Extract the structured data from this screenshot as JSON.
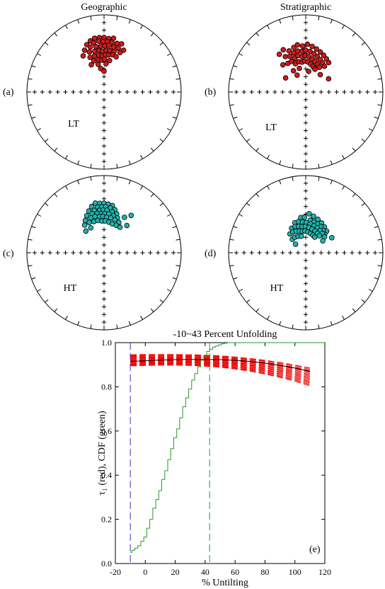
{
  "figure": {
    "col_titles": [
      "Geographic",
      "Stratigraphic"
    ],
    "panel_tags": [
      "(a)",
      "(b)",
      "(c)",
      "(d)",
      "(e)"
    ],
    "component_labels": [
      "LT",
      "LT",
      "HT",
      "HT"
    ]
  },
  "colors": {
    "lt_points": "#cc1a1a",
    "ht_points": "#20b2aa",
    "tau1_curves": "#ee0000",
    "cdf": "#2a9a2a",
    "mean_curve": "#000000",
    "lower_bound_line": "#3333cc",
    "upper_bound_line": "#2a9a2a"
  },
  "chart_data": [
    {
      "type": "scatter",
      "projection": "equal-area stereonet",
      "panel": "(a)",
      "title": "Geographic",
      "component": "LT",
      "points": [
        [
          345,
          32
        ],
        [
          350,
          30
        ],
        [
          355,
          30
        ],
        [
          0,
          30
        ],
        [
          5,
          31
        ],
        [
          10,
          30
        ],
        [
          340,
          35
        ],
        [
          348,
          35
        ],
        [
          354,
          34
        ],
        [
          359,
          35
        ],
        [
          4,
          35
        ],
        [
          9,
          35
        ],
        [
          15,
          35
        ],
        [
          20,
          34
        ],
        [
          335,
          40
        ],
        [
          343,
          39
        ],
        [
          350,
          40
        ],
        [
          356,
          40
        ],
        [
          1,
          40
        ],
        [
          6,
          39
        ],
        [
          12,
          40
        ],
        [
          18,
          40
        ],
        [
          25,
          40
        ],
        [
          330,
          45
        ],
        [
          340,
          44
        ],
        [
          347,
          45
        ],
        [
          353,
          45
        ],
        [
          358,
          46
        ],
        [
          3,
          45
        ],
        [
          8,
          45
        ],
        [
          14,
          45
        ],
        [
          22,
          44
        ],
        [
          338,
          50
        ],
        [
          345,
          50
        ],
        [
          352,
          50
        ],
        [
          357,
          51
        ],
        [
          2,
          50
        ],
        [
          7,
          50
        ],
        [
          13,
          49
        ],
        [
          19,
          50
        ],
        [
          342,
          55
        ],
        [
          350,
          55
        ],
        [
          356,
          56
        ],
        [
          1,
          55
        ],
        [
          10,
          56
        ],
        [
          335,
          58
        ],
        [
          348,
          60
        ],
        [
          4,
          60
        ],
        [
          352,
          65
        ],
        [
          0,
          68
        ]
      ]
    },
    {
      "type": "scatter",
      "projection": "equal-area stereonet",
      "panel": "(b)",
      "title": "Stratigraphic",
      "component": "LT",
      "points": [
        [
          325,
          40
        ],
        [
          332,
          38
        ],
        [
          338,
          42
        ],
        [
          345,
          40
        ],
        [
          350,
          38
        ],
        [
          356,
          40
        ],
        [
          2,
          38
        ],
        [
          8,
          40
        ],
        [
          14,
          42
        ],
        [
          20,
          44
        ],
        [
          26,
          46
        ],
        [
          32,
          48
        ],
        [
          38,
          50
        ],
        [
          330,
          46
        ],
        [
          336,
          48
        ],
        [
          343,
          46
        ],
        [
          349,
          45
        ],
        [
          355,
          46
        ],
        [
          0,
          45
        ],
        [
          6,
          46
        ],
        [
          12,
          48
        ],
        [
          18,
          50
        ],
        [
          24,
          52
        ],
        [
          30,
          54
        ],
        [
          36,
          56
        ],
        [
          320,
          52
        ],
        [
          328,
          54
        ],
        [
          335,
          54
        ],
        [
          342,
          52
        ],
        [
          348,
          50
        ],
        [
          354,
          52
        ],
        [
          359,
          51
        ],
        [
          5,
          52
        ],
        [
          11,
          54
        ],
        [
          17,
          56
        ],
        [
          23,
          58
        ],
        [
          29,
          60
        ],
        [
          340,
          58
        ],
        [
          347,
          57
        ],
        [
          353,
          58
        ],
        [
          358,
          57
        ],
        [
          4,
          58
        ],
        [
          10,
          60
        ],
        [
          16,
          62
        ],
        [
          305,
          64
        ],
        [
          330,
          64
        ],
        [
          345,
          64
        ],
        [
          22,
          64
        ],
        [
          8,
          68
        ],
        [
          40,
          66
        ],
        [
          60,
          62
        ],
        [
          333,
          70
        ]
      ]
    },
    {
      "type": "scatter",
      "projection": "equal-area stereonet",
      "panel": "(c)",
      "title": "Geographic",
      "component": "HT",
      "points": [
        [
          350,
          35
        ],
        [
          355,
          36
        ],
        [
          0,
          36
        ],
        [
          5,
          37
        ],
        [
          10,
          38
        ],
        [
          345,
          38
        ],
        [
          352,
          40
        ],
        [
          357,
          40
        ],
        [
          2,
          40
        ],
        [
          8,
          41
        ],
        [
          14,
          42
        ],
        [
          340,
          42
        ],
        [
          347,
          43
        ],
        [
          354,
          44
        ],
        [
          359,
          44
        ],
        [
          4,
          44
        ],
        [
          11,
          45
        ],
        [
          18,
          46
        ],
        [
          335,
          46
        ],
        [
          343,
          46
        ],
        [
          350,
          47
        ],
        [
          356,
          48
        ],
        [
          1,
          48
        ],
        [
          7,
          48
        ],
        [
          14,
          49
        ],
        [
          21,
          50
        ],
        [
          330,
          50
        ],
        [
          339,
          50
        ],
        [
          346,
          50
        ],
        [
          353,
          51
        ],
        [
          358,
          51
        ],
        [
          4,
          52
        ],
        [
          11,
          52
        ],
        [
          18,
          53
        ],
        [
          26,
          54
        ],
        [
          325,
          54
        ],
        [
          334,
          54
        ],
        [
          342,
          55
        ],
        [
          349,
          55
        ],
        [
          356,
          56
        ],
        [
          2,
          56
        ],
        [
          9,
          57
        ],
        [
          16,
          58
        ],
        [
          24,
          58
        ],
        [
          32,
          58
        ],
        [
          36,
          40
        ],
        [
          30,
          46
        ],
        [
          40,
          52
        ],
        [
          320,
          60
        ],
        [
          332,
          60
        ]
      ]
    },
    {
      "type": "scatter",
      "projection": "equal-area stereonet",
      "panel": "(d)",
      "title": "Stratigraphic",
      "component": "HT",
      "points": [
        [
          5,
          48
        ],
        [
          12,
          50
        ],
        [
          20,
          52
        ],
        [
          28,
          54
        ],
        [
          36,
          56
        ],
        [
          44,
          58
        ],
        [
          352,
          52
        ],
        [
          358,
          52
        ],
        [
          8,
          55
        ],
        [
          15,
          56
        ],
        [
          22,
          57
        ],
        [
          30,
          58
        ],
        [
          38,
          60
        ],
        [
          46,
          62
        ],
        [
          340,
          56
        ],
        [
          347,
          56
        ],
        [
          354,
          57
        ],
        [
          1,
          58
        ],
        [
          9,
          59
        ],
        [
          17,
          60
        ],
        [
          25,
          61
        ],
        [
          33,
          62
        ],
        [
          41,
          63
        ],
        [
          50,
          64
        ],
        [
          330,
          60
        ],
        [
          338,
          60
        ],
        [
          345,
          61
        ],
        [
          352,
          62
        ],
        [
          359,
          62
        ],
        [
          7,
          63
        ],
        [
          15,
          64
        ],
        [
          23,
          65
        ],
        [
          31,
          66
        ],
        [
          39,
          67
        ],
        [
          320,
          64
        ],
        [
          328,
          64
        ],
        [
          336,
          65
        ],
        [
          344,
          66
        ],
        [
          351,
          67
        ],
        [
          358,
          67
        ],
        [
          6,
          68
        ],
        [
          14,
          69
        ],
        [
          22,
          70
        ],
        [
          30,
          71
        ],
        [
          315,
          70
        ],
        [
          325,
          70
        ],
        [
          335,
          71
        ],
        [
          345,
          72
        ],
        [
          310,
          76
        ],
        [
          60,
          58
        ],
        [
          55,
          68
        ]
      ]
    },
    {
      "type": "line",
      "panel": "(e)",
      "title": "-10~43 Percent Unfolding",
      "xlabel": "% Untilting",
      "ylabel": "τ₁ (red), CDF (green)",
      "xlim": [
        -20,
        120
      ],
      "ylim": [
        0.0,
        1.0
      ],
      "xticks": [
        "-20",
        "0",
        "20",
        "40",
        "60",
        "80",
        "100",
        "120"
      ],
      "yticks": [
        "0.0",
        "0.2",
        "0.4",
        "0.6",
        "0.8",
        "1.0"
      ],
      "bounds": [
        -10,
        43
      ],
      "mean_curve": {
        "x": [
          -10,
          0,
          10,
          20,
          30,
          40,
          50,
          60,
          70,
          80,
          90,
          100,
          110
        ],
        "y": [
          0.915,
          0.918,
          0.921,
          0.923,
          0.924,
          0.924,
          0.923,
          0.92,
          0.915,
          0.907,
          0.897,
          0.885,
          0.87
        ]
      },
      "tau1_band": {
        "x": [
          -10,
          0,
          10,
          20,
          30,
          40,
          50,
          60,
          70,
          80,
          90,
          100,
          110
        ],
        "upper": [
          0.945,
          0.946,
          0.946,
          0.946,
          0.945,
          0.943,
          0.94,
          0.935,
          0.928,
          0.92,
          0.91,
          0.898,
          0.885
        ],
        "lower": [
          0.895,
          0.897,
          0.898,
          0.898,
          0.897,
          0.894,
          0.889,
          0.881,
          0.871,
          0.858,
          0.843,
          0.826,
          0.805
        ],
        "n_curves": 14
      },
      "cdf": {
        "x": [
          -10,
          -9,
          -7,
          -5,
          -3,
          -1,
          1,
          3,
          5,
          7,
          9,
          11,
          13,
          15,
          17,
          19,
          21,
          23,
          25,
          27,
          29,
          31,
          33,
          35,
          37,
          39,
          41,
          43,
          45,
          47,
          49,
          51,
          53,
          55
        ],
        "y": [
          0.05,
          0.06,
          0.07,
          0.08,
          0.1,
          0.12,
          0.16,
          0.2,
          0.25,
          0.29,
          0.33,
          0.38,
          0.42,
          0.47,
          0.52,
          0.57,
          0.61,
          0.66,
          0.71,
          0.75,
          0.79,
          0.83,
          0.86,
          0.89,
          0.92,
          0.94,
          0.96,
          0.97,
          0.98,
          0.985,
          0.99,
          0.995,
          0.998,
          1.0
        ]
      }
    }
  ]
}
